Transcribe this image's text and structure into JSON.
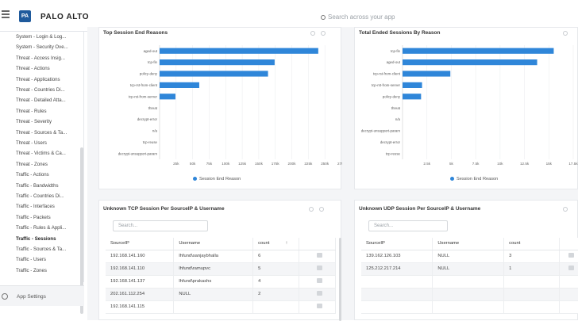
{
  "header": {
    "brand": "PALO ALTO",
    "search_placeholder": "Search across your app"
  },
  "sidebar": {
    "items": [
      "System - Login & Log...",
      "System - Security Ove...",
      "Threat - Access Insig...",
      "Threat - Actions",
      "Threat - Applications",
      "Threat - Countries Di...",
      "Threat - Detailed Atta...",
      "Threat - Rules",
      "Threat - Severity",
      "Threat - Sources & Ta...",
      "Threat - Users",
      "Threat - Victims & Ca...",
      "Threat - Zones",
      "Traffic - Actions",
      "Traffic - Bandwidths",
      "Traffic - Countries Di...",
      "Traffic - Interfaces",
      "Traffic - Packets",
      "Traffic - Rules & Appli...",
      "Traffic - Sessions",
      "Traffic - Sources & Ta...",
      "Traffic - Users",
      "Traffic - Zones"
    ],
    "active_index": 19,
    "footer_label": "App Settings"
  },
  "charts": {
    "left_title": "Top Session End Reasons",
    "right_title": "Total Ended Sessions By Reason"
  },
  "chart_data": [
    {
      "type": "bar",
      "orientation": "horizontal",
      "title": "Top Session End Reasons",
      "categories": [
        "aged-out",
        "tcp-fin",
        "policy-deny",
        "tcp-rst-from-client",
        "tcp-rst-from-server",
        "threat",
        "decrypt-error",
        "n/a",
        "tcp-reuse",
        "decrypt-unsupport-param"
      ],
      "values": [
        240000,
        174000,
        164000,
        60000,
        24000,
        0,
        0,
        0,
        0,
        0
      ],
      "x_ticks": [
        "25k",
        "50k",
        "75k",
        "100k",
        "125k",
        "150k",
        "175k",
        "200k",
        "225k",
        "250k",
        "275k"
      ],
      "xlim": [
        0,
        275000
      ],
      "legend": "Session End Reason"
    },
    {
      "type": "bar",
      "orientation": "horizontal",
      "title": "Total Ended Sessions By Reason",
      "categories": [
        "tcp-fin",
        "aged-out",
        "tcp-rst-from-client",
        "tcp-rst-from-server",
        "policy-deny",
        "threat",
        "n/a",
        "decrypt-unsupport-param",
        "decrypt-error",
        "tcp-reuse"
      ],
      "values": [
        15500,
        13800,
        4900,
        2000,
        1900,
        0,
        0,
        0,
        0,
        0
      ],
      "x_ticks": [
        "2.5k",
        "5k",
        "7.5k",
        "10k",
        "12.5k",
        "15k",
        "17.5k"
      ],
      "xlim": [
        0,
        17500
      ],
      "legend": "Session End Reason"
    }
  ],
  "tcp_table": {
    "title": "Unknown TCP Session Per SourceIP & Username",
    "search_placeholder": "Search...",
    "columns": [
      "SourceIP",
      "Username",
      "count"
    ],
    "rows": [
      [
        "192.168.141.160",
        "lhfund\\sanjaybhalla",
        "6"
      ],
      [
        "192.168.141.110",
        "lhfund\\ramupvc",
        "5"
      ],
      [
        "192.168.141.137",
        "lhfund\\prakashs",
        "4"
      ],
      [
        "202.161.112.254",
        "NULL",
        "2"
      ],
      [
        "192.168.141.115",
        "",
        ""
      ]
    ]
  },
  "udp_table": {
    "title": "Unknown UDP Session Per SourceIP & Username",
    "search_placeholder": "Search...",
    "columns": [
      "SourceIP",
      "Username",
      "count"
    ],
    "rows": [
      [
        "139.162.126.103",
        "NULL",
        "3"
      ],
      [
        "125.212.217.214",
        "NULL",
        "1"
      ]
    ]
  }
}
